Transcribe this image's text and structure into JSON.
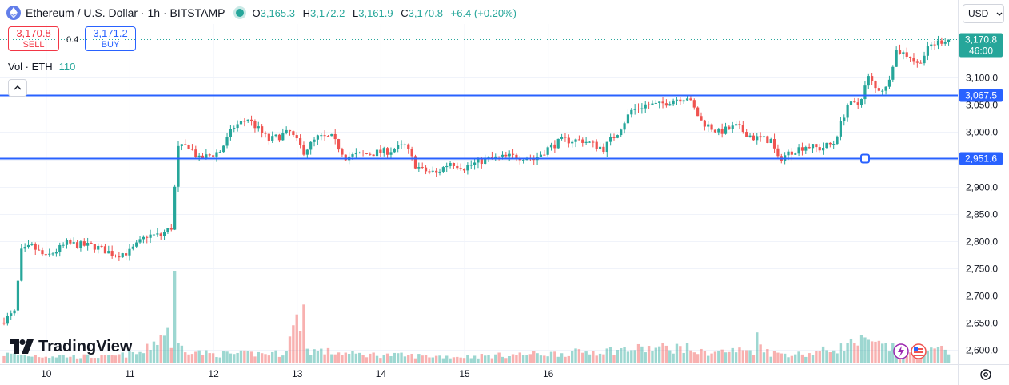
{
  "header": {
    "title": "Ethereum / U.S. Dollar · 1h · BITSTAMP",
    "ohlc": {
      "o_label": "O",
      "o": "3,165.3",
      "h_label": "H",
      "h": "3,172.2",
      "l_label": "L",
      "l": "3,161.9",
      "c_label": "C",
      "c": "3,170.8",
      "change": "+6.4 (+0.20%)"
    }
  },
  "trade": {
    "sell_price": "3,170.8",
    "sell_label": "SELL",
    "buy_price": "3,171.2",
    "buy_label": "BUY",
    "spread": "0.4"
  },
  "volume": {
    "label": "Vol · ETH",
    "value": "110"
  },
  "currency": "USD",
  "logo_text": "TradingView",
  "colors": {
    "up": "#26a69a",
    "down": "#ef5350",
    "hline": "#2962ff",
    "grid": "#f0f3fa"
  },
  "chart_data": {
    "type": "candlestick",
    "y_ticks": [
      2600,
      2650,
      2700,
      2750,
      2800,
      2850,
      2900,
      2950,
      3000,
      3050,
      3100
    ],
    "y_tick_labels": [
      "2,600.0",
      "2,650.0",
      "2,700.0",
      "2,750.0",
      "2,800.0",
      "2,850.0",
      "2,900.0",
      "2,950.0",
      "3,000.0",
      "3,050.0",
      "3,100.0"
    ],
    "x_ticks": [
      "10",
      "11",
      "12",
      "13",
      "14",
      "15",
      "16"
    ],
    "ylim": [
      2575,
      3185
    ],
    "horizontal_lines": [
      {
        "value": 3067.5,
        "label": "3,067.5"
      },
      {
        "value": 2951.6,
        "label": "2,951.6"
      }
    ],
    "last_price": {
      "value": 3170.8,
      "label": "3,170.8",
      "countdown": "46:00"
    },
    "anchors": [
      [
        0,
        2655
      ],
      [
        3,
        2668
      ],
      [
        5,
        2780
      ],
      [
        8,
        2790
      ],
      [
        12,
        2770
      ],
      [
        18,
        2795
      ],
      [
        26,
        2790
      ],
      [
        32,
        2775
      ],
      [
        36,
        2780
      ],
      [
        41,
        2810
      ],
      [
        45,
        2810
      ],
      [
        48,
        2825
      ],
      [
        50,
        2970
      ],
      [
        53,
        2975
      ],
      [
        56,
        2950
      ],
      [
        62,
        2965
      ],
      [
        66,
        3010
      ],
      [
        70,
        3025
      ],
      [
        76,
        2985
      ],
      [
        82,
        3000
      ],
      [
        86,
        2965
      ],
      [
        90,
        2990
      ],
      [
        94,
        2990
      ],
      [
        98,
        2955
      ],
      [
        104,
        2960
      ],
      [
        110,
        2965
      ],
      [
        115,
        2975
      ],
      [
        118,
        2940
      ],
      [
        120,
        2930
      ],
      [
        124,
        2925
      ],
      [
        128,
        2945
      ],
      [
        132,
        2935
      ],
      [
        138,
        2950
      ],
      [
        145,
        2955
      ],
      [
        150,
        2955
      ],
      [
        152,
        2950
      ],
      [
        156,
        2970
      ],
      [
        160,
        2985
      ],
      [
        166,
        2985
      ],
      [
        172,
        2970
      ],
      [
        176,
        3000
      ],
      [
        180,
        3040
      ],
      [
        184,
        3050
      ],
      [
        188,
        3050
      ],
      [
        192,
        3060
      ],
      [
        196,
        3065
      ],
      [
        200,
        3020
      ],
      [
        205,
        3000
      ],
      [
        210,
        3010
      ],
      [
        215,
        2990
      ],
      [
        220,
        2985
      ],
      [
        222,
        2950
      ],
      [
        226,
        2965
      ],
      [
        230,
        2975
      ],
      [
        234,
        2970
      ],
      [
        238,
        2980
      ],
      [
        242,
        3050
      ],
      [
        245,
        3050
      ],
      [
        248,
        3100
      ],
      [
        250,
        3080
      ],
      [
        253,
        3080
      ],
      [
        256,
        3150
      ],
      [
        260,
        3140
      ],
      [
        262,
        3125
      ],
      [
        266,
        3160
      ],
      [
        270,
        3170.8
      ]
    ],
    "volume_anchors": [
      [
        0,
        1.0
      ],
      [
        10,
        0.8
      ],
      [
        30,
        0.7
      ],
      [
        40,
        1.2
      ],
      [
        47,
        4.0
      ],
      [
        48,
        2.2
      ],
      [
        49,
        9.4
      ],
      [
        50,
        2.0
      ],
      [
        56,
        1.2
      ],
      [
        60,
        1.0
      ],
      [
        80,
        1.1
      ],
      [
        86,
        6.5
      ],
      [
        87,
        1.5
      ],
      [
        100,
        1.0
      ],
      [
        130,
        0.7
      ],
      [
        160,
        1.1
      ],
      [
        180,
        1.6
      ],
      [
        195,
        1.8
      ],
      [
        200,
        1.2
      ],
      [
        215,
        1.5
      ],
      [
        216,
        2.8
      ],
      [
        220,
        1.1
      ],
      [
        230,
        1.0
      ],
      [
        240,
        1.8
      ],
      [
        245,
        2.5
      ],
      [
        260,
        1.3
      ],
      [
        270,
        1.5
      ]
    ]
  }
}
